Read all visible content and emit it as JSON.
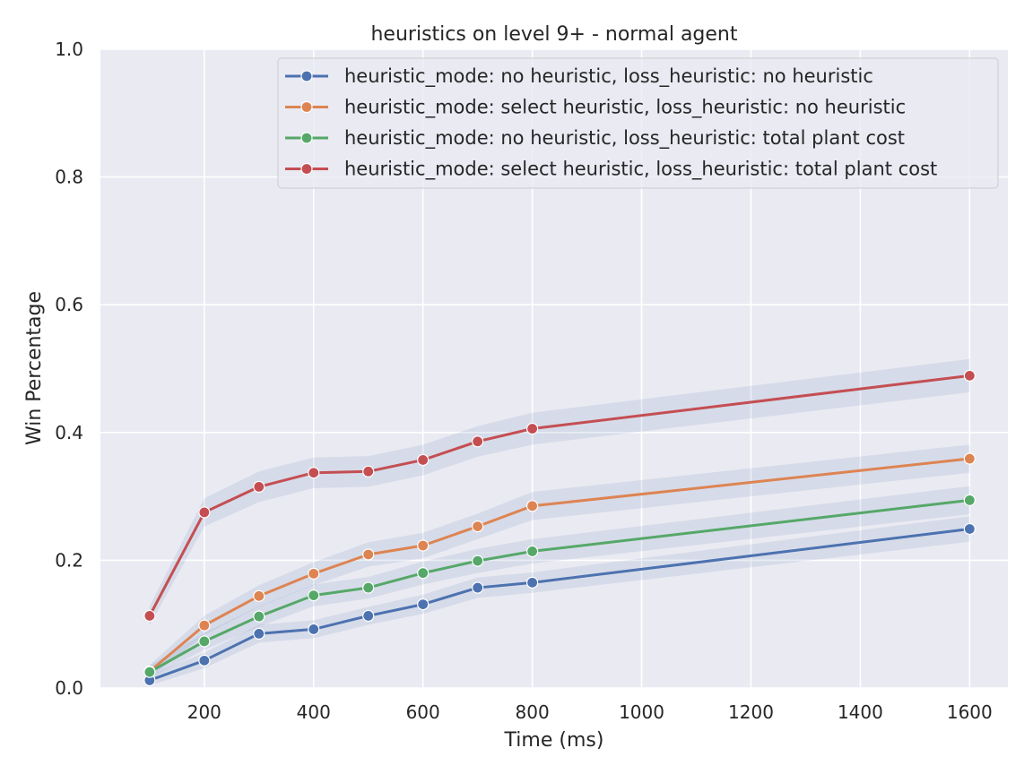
{
  "chart_data": {
    "type": "line",
    "title": "heuristics on level 9+ - normal agent",
    "xlabel": "Time (ms)",
    "ylabel": "Win Percentage",
    "xlim": [
      10,
      1670
    ],
    "ylim": [
      0,
      1.0
    ],
    "x_ticks": [
      200,
      400,
      600,
      800,
      1000,
      1200,
      1400,
      1600
    ],
    "y_ticks": [
      0.0,
      0.2,
      0.4,
      0.6,
      0.8,
      1.0
    ],
    "x_tick_labels": [
      "200",
      "400",
      "600",
      "800",
      "1000",
      "1200",
      "1400",
      "1600"
    ],
    "y_tick_labels": [
      "0.0",
      "0.2",
      "0.4",
      "0.6",
      "0.8",
      "1.0"
    ],
    "grid": true,
    "legend_position": "top-right",
    "x": [
      100,
      200,
      300,
      400,
      500,
      600,
      700,
      800,
      1600
    ],
    "series": [
      {
        "name": "heuristic_mode: no heuristic, loss_heuristic: no heuristic",
        "color": "#4c72b0",
        "values": [
          0.012,
          0.043,
          0.085,
          0.092,
          0.113,
          0.131,
          0.157,
          0.165,
          0.249
        ],
        "ci_half": [
          0.008,
          0.012,
          0.014,
          0.014,
          0.014,
          0.015,
          0.016,
          0.016,
          0.02
        ]
      },
      {
        "name": "heuristic_mode: select heuristic, loss_heuristic: no heuristic",
        "color": "#dd8452",
        "values": [
          0.026,
          0.098,
          0.144,
          0.179,
          0.209,
          0.223,
          0.253,
          0.285,
          0.359
        ],
        "ci_half": [
          0.01,
          0.015,
          0.017,
          0.018,
          0.019,
          0.02,
          0.02,
          0.022,
          0.022
        ]
      },
      {
        "name": "heuristic_mode: no heuristic, loss_heuristic: total plant cost",
        "color": "#55a868",
        "values": [
          0.025,
          0.073,
          0.112,
          0.145,
          0.157,
          0.18,
          0.199,
          0.214,
          0.294
        ],
        "ci_half": [
          0.01,
          0.013,
          0.016,
          0.017,
          0.017,
          0.018,
          0.019,
          0.019,
          0.022
        ]
      },
      {
        "name": "heuristic_mode: select heuristic, loss_heuristic: total plant cost",
        "color": "#c44e52",
        "values": [
          0.113,
          0.275,
          0.315,
          0.337,
          0.339,
          0.357,
          0.386,
          0.406,
          0.489
        ],
        "ci_half": [
          0.015,
          0.022,
          0.024,
          0.024,
          0.024,
          0.024,
          0.024,
          0.025,
          0.026
        ]
      }
    ],
    "colors": {
      "plot_bg": "#eaeaf2",
      "grid": "#ffffff",
      "ci_band": "#4c72b0"
    }
  }
}
